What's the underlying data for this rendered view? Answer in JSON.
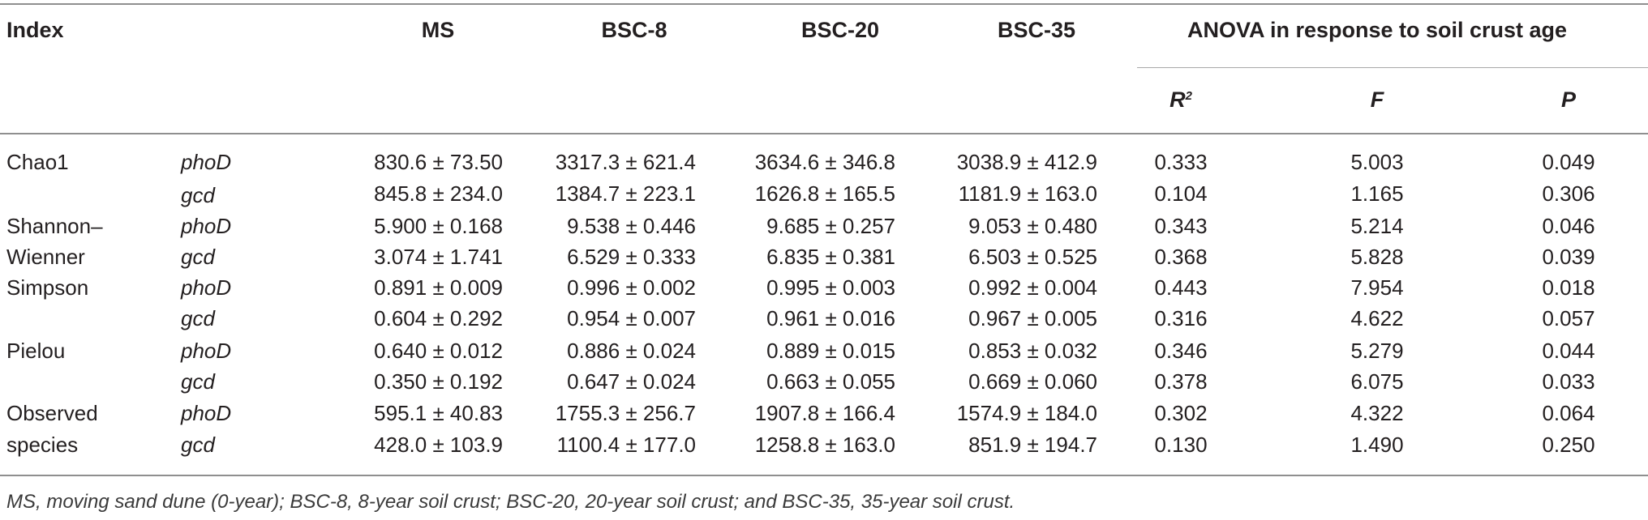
{
  "headers": {
    "index": "Index",
    "ms": "MS",
    "bsc8": "BSC-8",
    "bsc20": "BSC-20",
    "bsc35": "BSC-35",
    "anova": "ANOVA in response to soil crust age",
    "r2_base": "R",
    "r2_sup": "2",
    "f": "F",
    "p": "P"
  },
  "rows": [
    {
      "index": "Chao1",
      "gene": "phoD",
      "ms": "830.6 ± 73.50",
      "bsc8": "3317.3 ± 621.4",
      "bsc20": "3634.6 ± 346.8",
      "bsc35": "3038.9 ± 412.9",
      "r2": "0.333",
      "f": "5.003",
      "p": "0.049"
    },
    {
      "index": "",
      "gene": "gcd",
      "ms": "845.8 ± 234.0",
      "bsc8": "1384.7 ± 223.1",
      "bsc20": "1626.8 ± 165.5",
      "bsc35": "1181.9 ± 163.0",
      "r2": "0.104",
      "f": "1.165",
      "p": "0.306"
    },
    {
      "index": "Shannon–",
      "gene": "phoD",
      "ms": "5.900 ± 0.168",
      "bsc8": "9.538 ± 0.446",
      "bsc20": "9.685 ± 0.257",
      "bsc35": "9.053 ± 0.480",
      "r2": "0.343",
      "f": "5.214",
      "p": "0.046"
    },
    {
      "index": "Wienner",
      "gene": "gcd",
      "ms": "3.074 ± 1.741",
      "bsc8": "6.529 ± 0.333",
      "bsc20": "6.835 ± 0.381",
      "bsc35": "6.503 ± 0.525",
      "r2": "0.368",
      "f": "5.828",
      "p": "0.039"
    },
    {
      "index": "Simpson",
      "gene": "phoD",
      "ms": "0.891 ± 0.009",
      "bsc8": "0.996 ± 0.002",
      "bsc20": "0.995 ± 0.003",
      "bsc35": "0.992 ± 0.004",
      "r2": "0.443",
      "f": "7.954",
      "p": "0.018"
    },
    {
      "index": "",
      "gene": "gcd",
      "ms": "0.604 ± 0.292",
      "bsc8": "0.954 ± 0.007",
      "bsc20": "0.961 ± 0.016",
      "bsc35": "0.967 ± 0.005",
      "r2": "0.316",
      "f": "4.622",
      "p": "0.057"
    },
    {
      "index": "Pielou",
      "gene": "phoD",
      "ms": "0.640 ± 0.012",
      "bsc8": "0.886 ± 0.024",
      "bsc20": "0.889 ± 0.015",
      "bsc35": "0.853 ± 0.032",
      "r2": "0.346",
      "f": "5.279",
      "p": "0.044"
    },
    {
      "index": "",
      "gene": "gcd",
      "ms": "0.350 ± 0.192",
      "bsc8": "0.647 ± 0.024",
      "bsc20": "0.663 ± 0.055",
      "bsc35": "0.669 ± 0.060",
      "r2": "0.378",
      "f": "6.075",
      "p": "0.033"
    },
    {
      "index": "Observed",
      "gene": "phoD",
      "ms": "595.1 ± 40.83",
      "bsc8": "1755.3 ± 256.7",
      "bsc20": "1907.8 ± 166.4",
      "bsc35": "1574.9 ± 184.0",
      "r2": "0.302",
      "f": "4.322",
      "p": "0.064"
    },
    {
      "index": "species",
      "gene": "gcd",
      "ms": "428.0 ± 103.9",
      "bsc8": "1100.4 ± 177.0",
      "bsc20": "1258.8 ± 163.0",
      "bsc35": "851.9 ± 194.7",
      "r2": "0.130",
      "f": "1.490",
      "p": "0.250"
    }
  ],
  "footnote": "MS, moving sand dune (0-year); BSC-8, 8-year soil crust; BSC-20, 20-year soil crust; and BSC-35, 35-year soil crust."
}
